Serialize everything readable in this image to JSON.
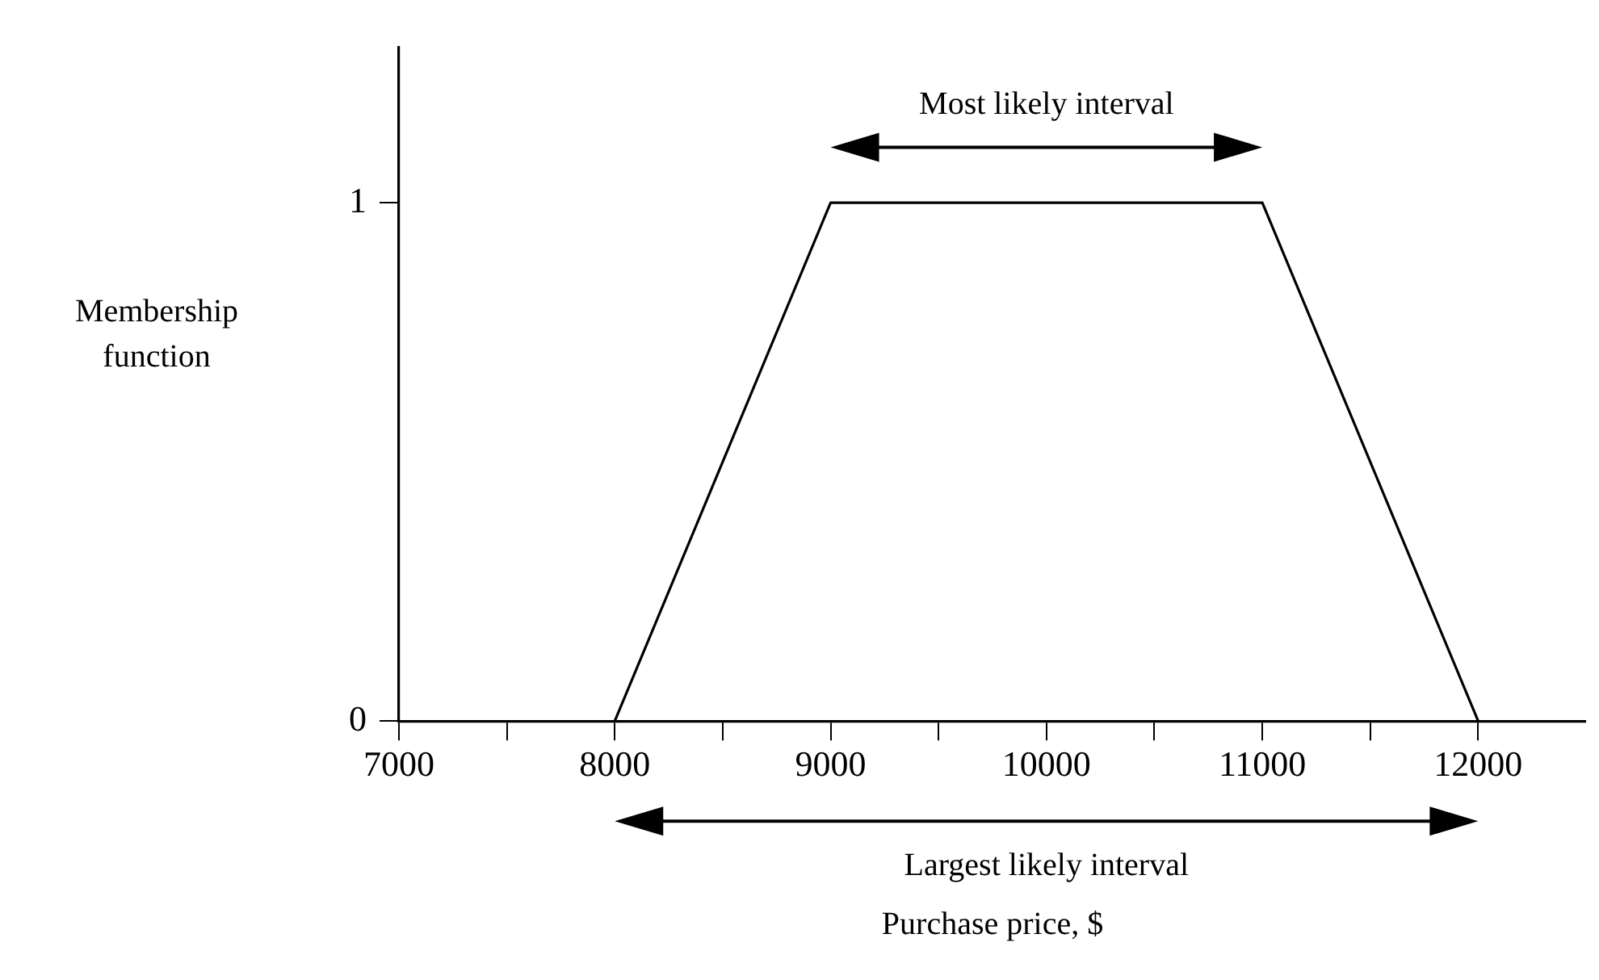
{
  "chart_data": {
    "type": "line",
    "xlabel": "Purchase price, $",
    "ylabel": "Membership function",
    "x": [
      8000,
      9000,
      11000,
      12000
    ],
    "series": [
      {
        "color": "#000000",
        "values": [
          0,
          1,
          1,
          0
        ]
      }
    ],
    "xlim": [
      7000,
      12500
    ],
    "xticks": [
      7000,
      {
        "value": 7500,
        "label": null
      },
      8000,
      {
        "value": 8500,
        "label": null
      },
      9000,
      {
        "value": 9500,
        "label": null
      },
      10000,
      {
        "value": 10500,
        "label": null
      },
      11000,
      {
        "value": 11500,
        "label": null
      },
      12000
    ],
    "ylim": [
      0,
      1.3
    ],
    "yticks": [
      0,
      1
    ],
    "annotations": [
      "Most likely interval",
      "Largest likely interval"
    ],
    "grid": false,
    "legend": false,
    "marker": "none",
    "line_style": "solid"
  }
}
